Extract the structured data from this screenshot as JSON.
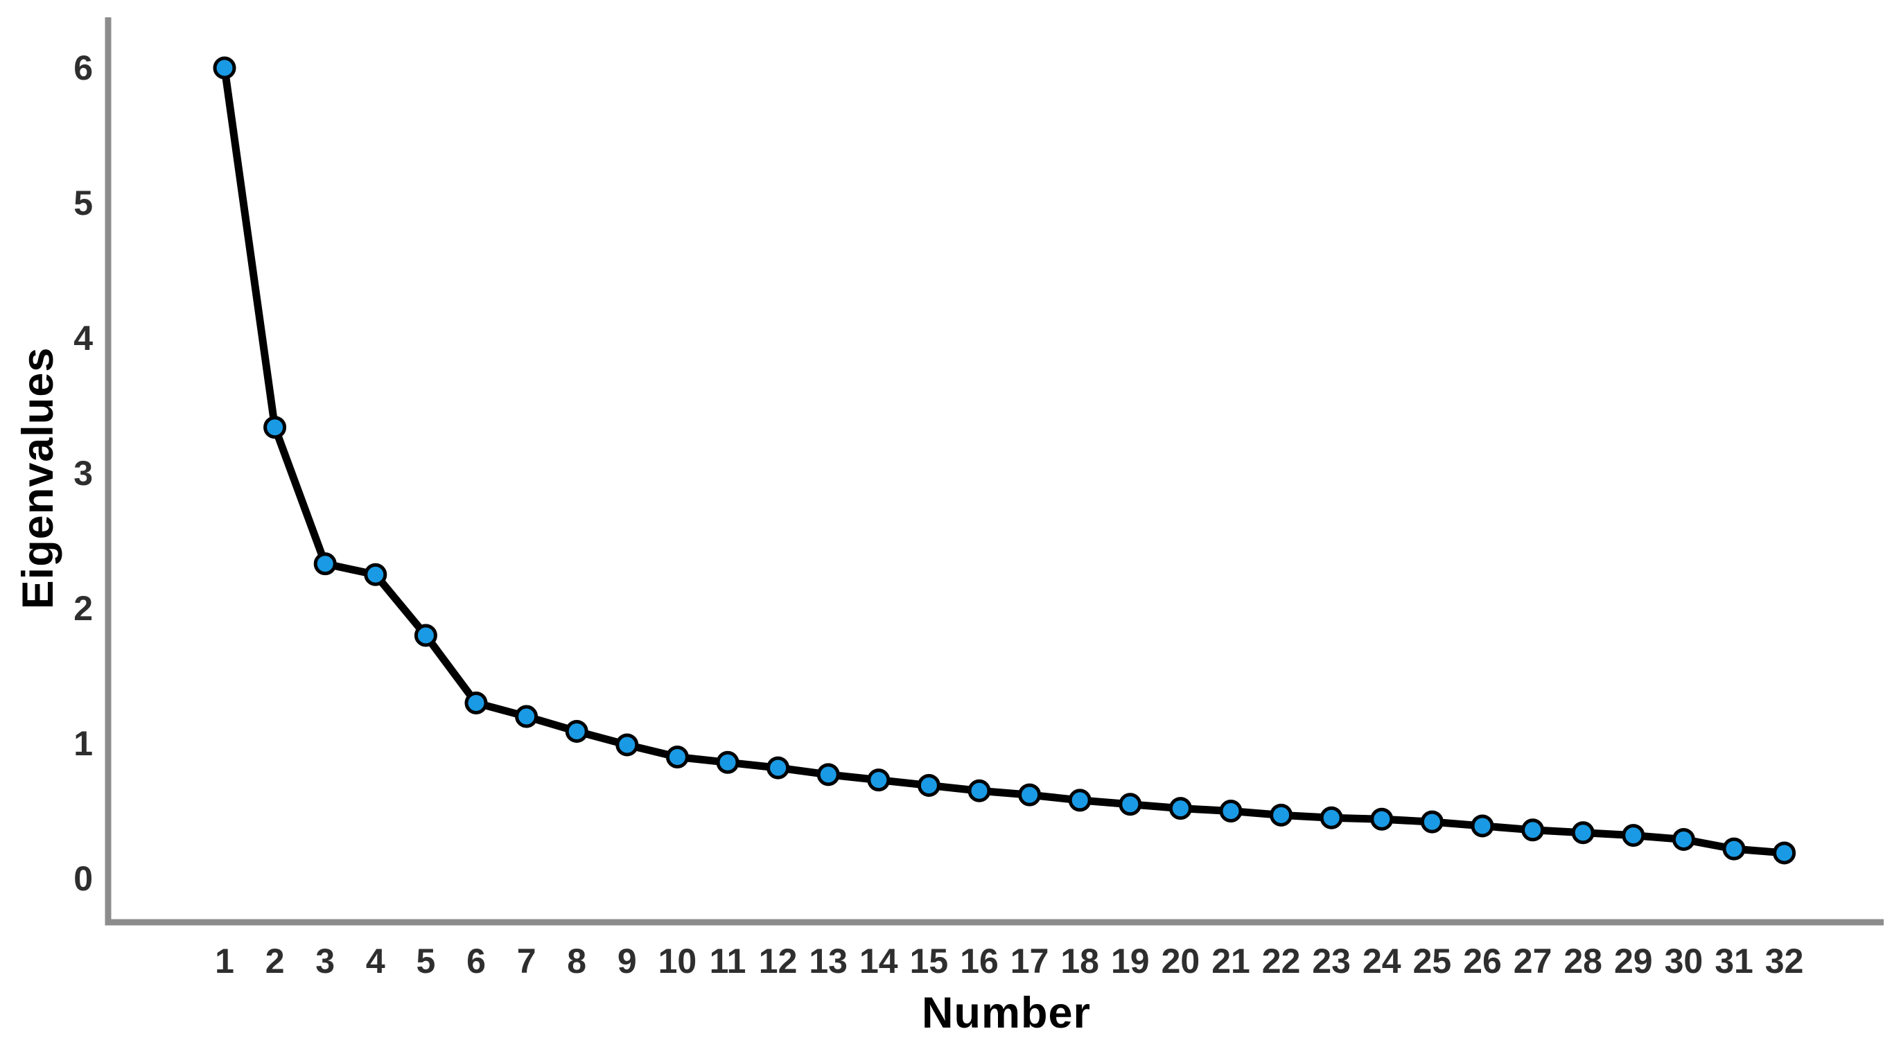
{
  "figure": {
    "background": "#ffffff"
  },
  "chart_data": {
    "type": "line",
    "title": "",
    "xlabel": "Number",
    "ylabel": "Eigenvalues",
    "series_name": "Eigenvalues",
    "x": [
      1,
      2,
      3,
      4,
      5,
      6,
      7,
      8,
      9,
      10,
      11,
      12,
      13,
      14,
      15,
      16,
      17,
      18,
      19,
      20,
      21,
      22,
      23,
      24,
      25,
      26,
      27,
      28,
      29,
      30,
      31,
      32
    ],
    "values": [
      6.0,
      3.34,
      2.33,
      2.25,
      1.8,
      1.3,
      1.2,
      1.09,
      0.99,
      0.9,
      0.86,
      0.82,
      0.77,
      0.73,
      0.69,
      0.65,
      0.62,
      0.58,
      0.55,
      0.52,
      0.5,
      0.47,
      0.45,
      0.44,
      0.42,
      0.39,
      0.36,
      0.34,
      0.32,
      0.29,
      0.22,
      0.19
    ],
    "yticks": [
      0,
      1,
      2,
      3,
      4,
      5,
      6
    ],
    "ylim": [
      0,
      6.4
    ],
    "xlim": [
      0,
      33
    ],
    "grid": false,
    "legend_position": "none",
    "marker_shape": "circle",
    "colors": {
      "marker_fill": "#1a9ae4",
      "marker_edge": "#000000",
      "line": "#000000",
      "axis": "#8c8c8c",
      "tick_text": "#2e2e2e",
      "title_text": "#000000"
    }
  }
}
